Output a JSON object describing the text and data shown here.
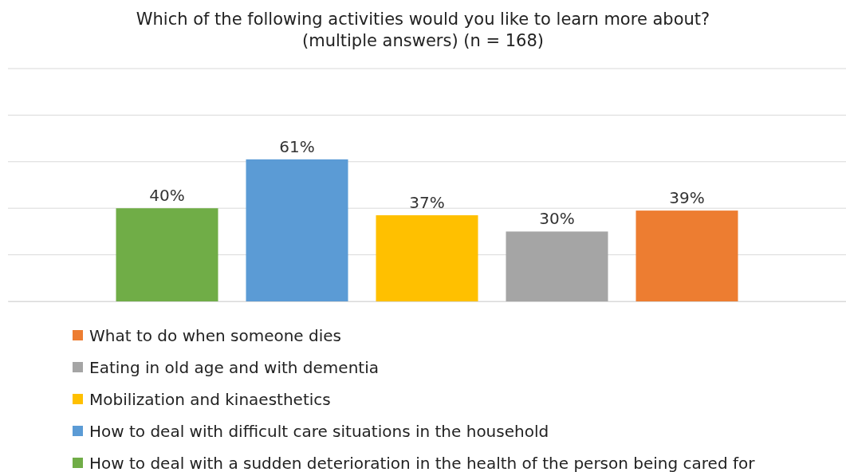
{
  "chart_data": {
    "type": "bar",
    "title": "Which of the following activities would you like to learn more about?\n(multiple answers) (n = 168)",
    "categories": [
      null
    ],
    "series": [
      {
        "name": "How to deal with a sudden deterioration in the health of the person being cared for",
        "color": "#70ad47",
        "values": [
          40
        ],
        "value_labels": [
          "40%"
        ]
      },
      {
        "name": "How to deal with difficult care situations in the household",
        "color": "#5b9bd5",
        "values": [
          61
        ],
        "value_labels": [
          "61%"
        ]
      },
      {
        "name": "Mobilization and kinaesthetics",
        "color": "#ffc000",
        "values": [
          37
        ],
        "value_labels": [
          "37%"
        ]
      },
      {
        "name": "Eating in old age and with dementia",
        "color": "#a5a5a5",
        "values": [
          30
        ],
        "value_labels": [
          "30%"
        ]
      },
      {
        "name": "What to do when someone dies",
        "color": "#ed7d31",
        "values": [
          39
        ],
        "value_labels": [
          "39%"
        ]
      }
    ],
    "ylim": [
      0,
      100
    ],
    "yticks": [
      0,
      20,
      40,
      60,
      80,
      100
    ],
    "grid": "y",
    "tick_labels": false,
    "legend": "bottom"
  }
}
